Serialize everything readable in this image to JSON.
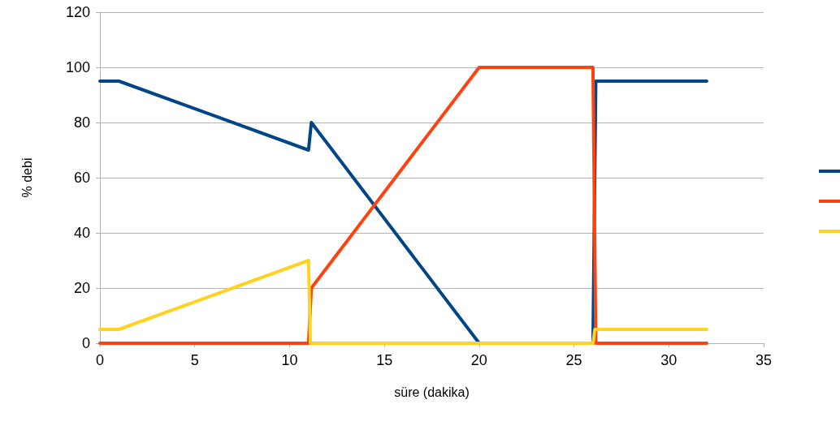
{
  "chart_data": {
    "type": "line",
    "xlabel": "süre (dakika)",
    "ylabel": "% debi",
    "xlim": [
      0,
      35
    ],
    "xticks": [
      0,
      5,
      10,
      15,
      20,
      25,
      30,
      35
    ],
    "ylim": [
      0,
      120
    ],
    "yticks": [
      0,
      20,
      40,
      60,
      80,
      100,
      120
    ],
    "grid": "y",
    "marker": "none",
    "line_style": "solid",
    "series": [
      {
        "color": "#004586",
        "x": [
          0,
          1,
          11,
          11.15,
          20,
          26,
          26.15,
          32
        ],
        "values": [
          95,
          95,
          70,
          80,
          0,
          0,
          95,
          95
        ]
      },
      {
        "color": "#ff420e",
        "x": [
          0,
          11,
          11.15,
          20,
          26,
          26.15,
          32
        ],
        "values": [
          0,
          0,
          20,
          100,
          100,
          0,
          0
        ]
      },
      {
        "color": "#ffd320",
        "x": [
          0,
          1,
          11,
          11.1,
          20,
          26,
          26.1,
          32
        ],
        "values": [
          5,
          5,
          30,
          0,
          0,
          0,
          5,
          5
        ]
      }
    ]
  }
}
